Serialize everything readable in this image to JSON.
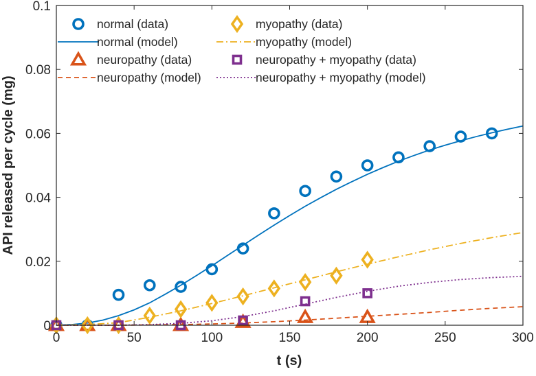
{
  "chart_data": {
    "type": "scatter",
    "title": "",
    "xlabel": "t (s)",
    "ylabel": "API released per cycle (mg)",
    "xlim": [
      0,
      300
    ],
    "ylim": [
      0,
      0.1
    ],
    "xticks": [
      0,
      50,
      100,
      150,
      200,
      250,
      300
    ],
    "xtick_labels": [
      "0",
      "50",
      "100",
      "150",
      "200",
      "250",
      "300"
    ],
    "yticks": [
      0,
      0.02,
      0.04,
      0.06,
      0.08,
      0.1
    ],
    "ytick_labels": [
      "0",
      "0.02",
      "0.04",
      "0.06",
      "0.08",
      "0.1"
    ],
    "grid": false,
    "legend_position": "top",
    "series": [
      {
        "name": "normal (data)",
        "kind": "marker",
        "marker": "circle",
        "color": "#0072BD",
        "x": [
          0,
          20,
          40,
          60,
          80,
          100,
          120,
          140,
          160,
          180,
          200,
          220,
          240,
          260,
          280
        ],
        "y": [
          0,
          0,
          0.0095,
          0.0125,
          0.012,
          0.0175,
          0.024,
          0.035,
          0.042,
          0.0465,
          0.05,
          0.0525,
          0.056,
          0.059,
          0.06
        ]
      },
      {
        "name": "normal (model)",
        "kind": "line",
        "dash": "solid",
        "color": "#0072BD",
        "x": [
          0,
          10,
          20,
          30,
          40,
          50,
          60,
          70,
          80,
          90,
          100,
          110,
          120,
          130,
          140,
          150,
          160,
          170,
          180,
          190,
          200,
          210,
          220,
          230,
          240,
          250,
          260,
          270,
          280,
          290,
          300
        ],
        "y": [
          0,
          0.0002,
          0.0007,
          0.0016,
          0.003,
          0.0048,
          0.007,
          0.0097,
          0.0125,
          0.0155,
          0.0186,
          0.0218,
          0.025,
          0.0282,
          0.0313,
          0.0343,
          0.0372,
          0.0399,
          0.0425,
          0.0449,
          0.0472,
          0.0493,
          0.0513,
          0.0531,
          0.0548,
          0.0563,
          0.0577,
          0.059,
          0.0602,
          0.0613,
          0.0623
        ]
      },
      {
        "name": "neuropathy (data)",
        "kind": "marker",
        "marker": "triangle",
        "color": "#D95319",
        "x": [
          0,
          20,
          40,
          80,
          120,
          160,
          200
        ],
        "y": [
          0,
          0,
          0,
          0,
          0.001,
          0.0025,
          0.0025
        ]
      },
      {
        "name": "neuropathy (model)",
        "kind": "line",
        "dash": "dashed",
        "color": "#D95319",
        "x": [
          0,
          20,
          40,
          60,
          80,
          100,
          120,
          140,
          160,
          180,
          200,
          220,
          240,
          260,
          280,
          300
        ],
        "y": [
          0,
          0,
          0,
          0.0001,
          0.0002,
          0.0004,
          0.0007,
          0.0011,
          0.0016,
          0.0022,
          0.0028,
          0.0034,
          0.004,
          0.0047,
          0.0053,
          0.0058
        ]
      },
      {
        "name": "myopathy (data)",
        "kind": "marker",
        "marker": "diamond",
        "color": "#EDB120",
        "x": [
          0,
          20,
          40,
          60,
          80,
          100,
          120,
          140,
          160,
          180,
          200
        ],
        "y": [
          0,
          0,
          0,
          0.003,
          0.005,
          0.007,
          0.009,
          0.0115,
          0.0135,
          0.0155,
          0.0205
        ]
      },
      {
        "name": "myopathy (model)",
        "kind": "line",
        "dash": "dashdot",
        "color": "#EDB120",
        "x": [
          0,
          20,
          40,
          60,
          80,
          100,
          120,
          140,
          160,
          180,
          200,
          220,
          240,
          260,
          280,
          300
        ],
        "y": [
          0,
          0.0002,
          0.0008,
          0.0025,
          0.0045,
          0.0068,
          0.0092,
          0.0117,
          0.0142,
          0.0167,
          0.0191,
          0.0214,
          0.0236,
          0.0256,
          0.0274,
          0.029
        ]
      },
      {
        "name": "neuropathy + myopathy (data)",
        "kind": "marker",
        "marker": "square",
        "color": "#7E2F8E",
        "x": [
          0,
          40,
          80,
          120,
          160,
          200
        ],
        "y": [
          0,
          0,
          0,
          0.0015,
          0.0075,
          0.01
        ]
      },
      {
        "name": "neuropathy + myopathy (model)",
        "kind": "line",
        "dash": "dotted",
        "color": "#7E2F8E",
        "x": [
          0,
          20,
          40,
          60,
          80,
          100,
          120,
          140,
          160,
          180,
          200,
          220,
          240,
          260,
          280,
          300
        ],
        "y": [
          0,
          0,
          0,
          0.0002,
          0.0006,
          0.0014,
          0.0027,
          0.0045,
          0.0066,
          0.0087,
          0.0106,
          0.0122,
          0.0134,
          0.0143,
          0.0149,
          0.0153
        ]
      }
    ]
  }
}
